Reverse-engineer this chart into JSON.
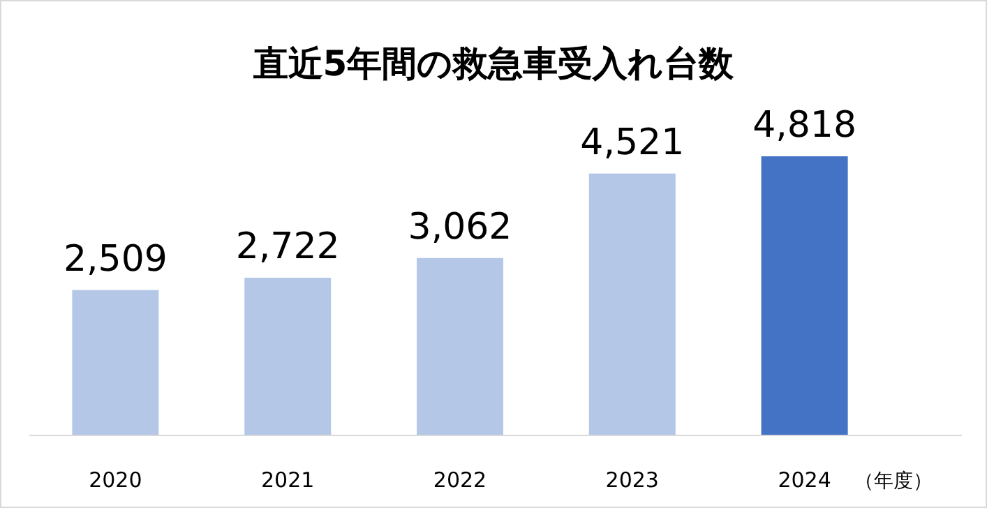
{
  "chart_data": {
    "type": "bar",
    "title": "直近5年間の救急車受入れ台数",
    "xlabel": "（年度）",
    "categories": [
      "2020",
      "2021",
      "2022",
      "2023",
      "2024"
    ],
    "values": [
      2509,
      2722,
      3062,
      4521,
      4818
    ],
    "colors": [
      "#b4c7e7",
      "#b4c7e7",
      "#b4c7e7",
      "#b4c7e7",
      "#4472c4"
    ],
    "value_labels": [
      "2,509",
      "2,722",
      "3,062",
      "4,521",
      "4,818"
    ]
  }
}
